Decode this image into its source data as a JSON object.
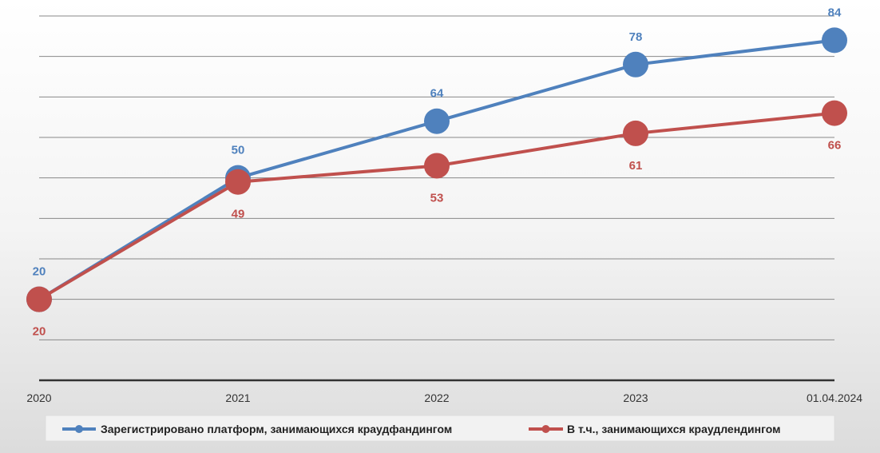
{
  "chart_data": {
    "type": "line",
    "title": "",
    "xlabel": "",
    "ylabel": "",
    "categories": [
      "2020",
      "2021",
      "2022",
      "2023",
      "01.04.2024"
    ],
    "ylim": [
      0,
      90
    ],
    "grid": true,
    "legend_position": "bottom",
    "series": [
      {
        "name": "Зарегистрировано платформ, занимающихся краудфандингом",
        "values": [
          20,
          50,
          64,
          78,
          84
        ],
        "color": "#4f81bd",
        "label_position": "above"
      },
      {
        "name": "В т.ч., занимающихся краудлендингом",
        "values": [
          20,
          49,
          53,
          61,
          66
        ],
        "color": "#c0504d",
        "label_position": "below"
      }
    ]
  }
}
